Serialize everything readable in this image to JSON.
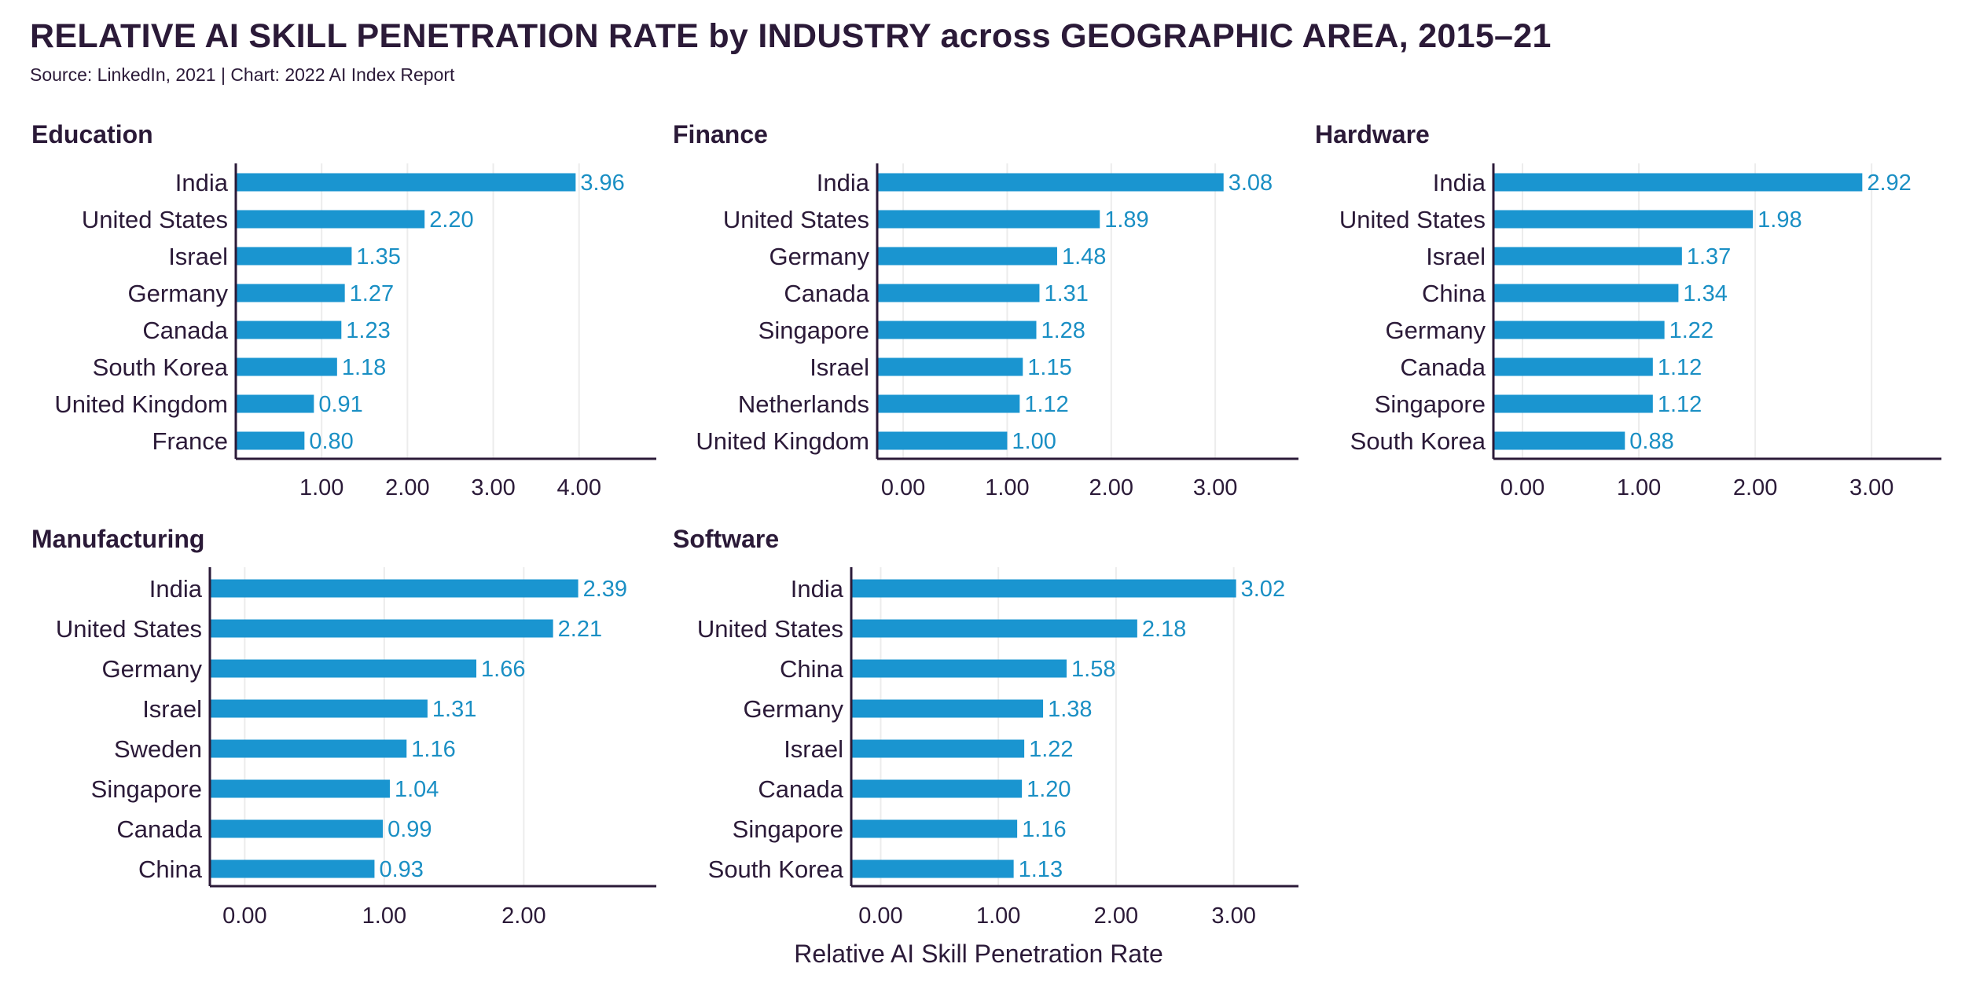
{
  "header": {
    "title": "RELATIVE AI SKILL PENETRATION RATE by INDUSTRY across GEOGRAPHIC AREA, 2015–21",
    "subtitle": "Source: LinkedIn, 2021 | Chart: 2022 AI Index Report"
  },
  "colors": {
    "bar": "#1a95d0",
    "value_label": "#1a8fc4",
    "text": "#2b1a38",
    "axis": "#2b1a38",
    "grid": "#ececec"
  },
  "chart_data": [
    {
      "type": "bar",
      "orientation": "horizontal",
      "title": "Education",
      "categories": [
        "India",
        "United States",
        "Israel",
        "Germany",
        "Canada",
        "South Korea",
        "United Kingdom",
        "France"
      ],
      "values": [
        3.96,
        2.2,
        1.35,
        1.27,
        1.23,
        1.18,
        0.91,
        0.8
      ],
      "value_labels": [
        "3.96",
        "2.20",
        "1.35",
        "1.27",
        "1.23",
        "1.18",
        "0.91",
        "0.80"
      ],
      "xlim": [
        0,
        4.9
      ],
      "xticks": [
        1,
        2,
        3,
        4
      ],
      "xtick_labels": [
        "1.00",
        "2.00",
        "3.00",
        "4.00"
      ]
    },
    {
      "type": "bar",
      "orientation": "horizontal",
      "title": "Finance",
      "categories": [
        "India",
        "United States",
        "Germany",
        "Canada",
        "Singapore",
        "Israel",
        "Netherlands",
        "United Kingdom"
      ],
      "values": [
        3.08,
        1.89,
        1.48,
        1.31,
        1.28,
        1.15,
        1.12,
        1.0
      ],
      "value_labels": [
        "3.08",
        "1.89",
        "1.48",
        "1.31",
        "1.28",
        "1.15",
        "1.12",
        "1.00"
      ],
      "xlim": [
        -0.25,
        3.8
      ],
      "xticks": [
        0,
        1,
        2,
        3
      ],
      "xtick_labels": [
        "0.00",
        "1.00",
        "2.00",
        "3.00"
      ]
    },
    {
      "type": "bar",
      "orientation": "horizontal",
      "title": "Hardware",
      "categories": [
        "India",
        "United States",
        "Israel",
        "China",
        "Germany",
        "Canada",
        "Singapore",
        "South Korea"
      ],
      "values": [
        2.92,
        1.98,
        1.37,
        1.34,
        1.22,
        1.12,
        1.12,
        0.88
      ],
      "value_labels": [
        "2.92",
        "1.98",
        "1.37",
        "1.34",
        "1.22",
        "1.12",
        "1.12",
        "0.88"
      ],
      "xlim": [
        -0.25,
        3.6
      ],
      "xticks": [
        0,
        1,
        2,
        3
      ],
      "xtick_labels": [
        "0.00",
        "1.00",
        "2.00",
        "3.00"
      ]
    },
    {
      "type": "bar",
      "orientation": "horizontal",
      "title": "Manufacturing",
      "categories": [
        "India",
        "United States",
        "Germany",
        "Israel",
        "Sweden",
        "Singapore",
        "Canada",
        "China"
      ],
      "values": [
        2.39,
        2.21,
        1.66,
        1.31,
        1.16,
        1.04,
        0.99,
        0.93
      ],
      "value_labels": [
        "2.39",
        "2.21",
        "1.66",
        "1.31",
        "1.16",
        "1.04",
        "0.99",
        "0.93"
      ],
      "xlim": [
        -0.25,
        2.95
      ],
      "xticks": [
        0,
        1,
        2
      ],
      "xtick_labels": [
        "0.00",
        "1.00",
        "2.00"
      ]
    },
    {
      "type": "bar",
      "orientation": "horizontal",
      "title": "Software",
      "categories": [
        "India",
        "United States",
        "China",
        "Germany",
        "Israel",
        "Canada",
        "Singapore",
        "South Korea"
      ],
      "values": [
        3.02,
        2.18,
        1.58,
        1.38,
        1.22,
        1.2,
        1.16,
        1.13
      ],
      "value_labels": [
        "3.02",
        "2.18",
        "1.58",
        "1.38",
        "1.22",
        "1.20",
        "1.16",
        "1.13"
      ],
      "xlim": [
        -0.25,
        3.55
      ],
      "xticks": [
        0,
        1,
        2,
        3
      ],
      "xtick_labels": [
        "0.00",
        "1.00",
        "2.00",
        "3.00"
      ]
    }
  ],
  "x_axis_title": "Relative AI Skill Penetration Rate"
}
